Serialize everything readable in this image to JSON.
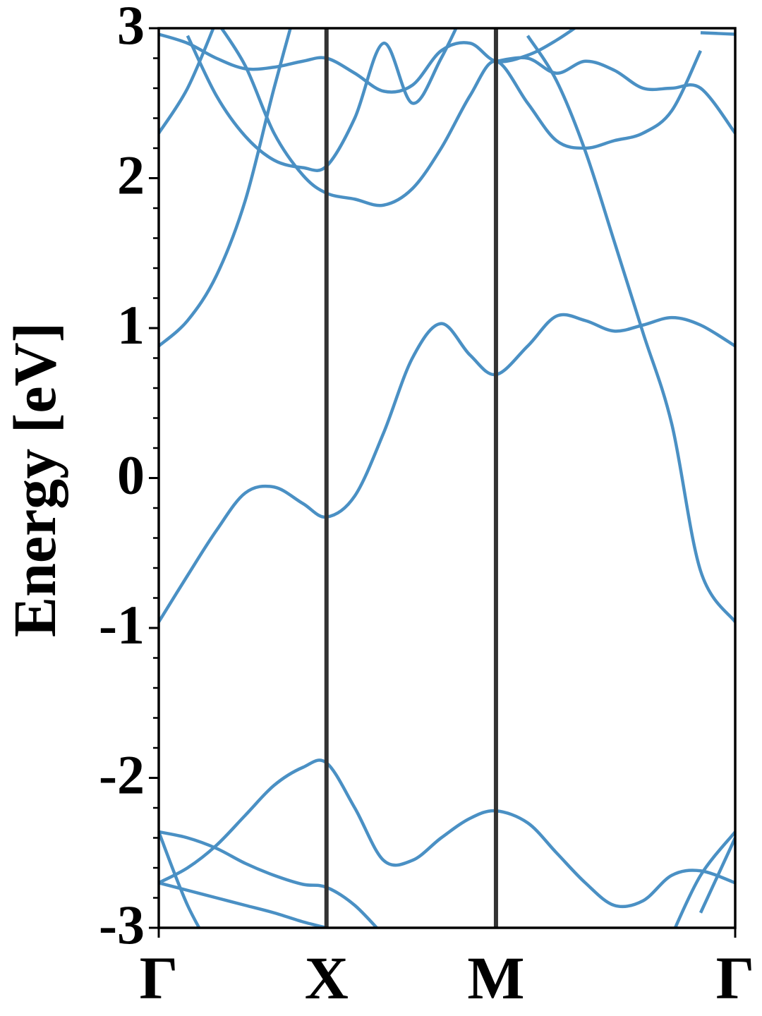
{
  "chart_data": {
    "type": "line",
    "ylabel": "Energy [eV]",
    "color": "#4a90c4",
    "xlim": [
      0,
      1
    ],
    "xticks": [
      {
        "value": 0,
        "label": "Γ"
      },
      {
        "value": 0.291,
        "label": "X"
      },
      {
        "value": 0.585,
        "label": "M"
      },
      {
        "value": 1,
        "label": "Γ"
      }
    ],
    "ylim": [
      -3,
      3
    ],
    "yticks": [
      -3,
      -2,
      -1,
      0,
      1,
      2,
      3
    ],
    "y_minor_ticks": [
      -2.8,
      -2.6,
      -2.4,
      -2.2,
      -1.8,
      -1.6,
      -1.4,
      -1.2,
      -0.8,
      -0.6,
      -0.4,
      -0.2,
      0.2,
      0.4,
      0.6,
      0.8,
      1.2,
      1.4,
      1.6,
      1.8,
      2.2,
      2.4,
      2.6,
      2.8
    ],
    "x": [
      0,
      0.05,
      0.1,
      0.15,
      0.2,
      0.25,
      0.291,
      0.34,
      0.39,
      0.44,
      0.49,
      0.54,
      0.585,
      0.64,
      0.69,
      0.74,
      0.79,
      0.84,
      0.89,
      0.94,
      1
    ],
    "series": [
      {
        "values": [
          -0.96,
          -0.65,
          -0.35,
          -0.1,
          -0.06,
          -0.17,
          -0.26,
          -0.12,
          0.3,
          0.8,
          1.03,
          0.82,
          0.69,
          0.88,
          1.08,
          1.05,
          0.98,
          1.02,
          1.07,
          1.02,
          0.88
        ]
      },
      {
        "values": [
          null,
          null,
          null,
          null,
          null,
          null,
          null,
          null,
          null,
          null,
          null,
          null,
          null,
          2.95,
          2.65,
          2.18,
          1.58,
          0.97,
          0.36,
          -0.62,
          -0.96
        ]
      },
      {
        "values": [
          0.88,
          1.05,
          1.35,
          1.85,
          2.6,
          3.3,
          null,
          null,
          null,
          null,
          null,
          null,
          null,
          null,
          null,
          null,
          null,
          null,
          null,
          null,
          null
        ]
      },
      {
        "values": [
          2.3,
          2.6,
          3.05,
          null,
          null,
          null,
          null,
          null,
          null,
          null,
          null,
          null,
          null,
          null,
          null,
          null,
          null,
          null,
          null,
          null,
          null
        ]
      },
      {
        "values": [
          2.96,
          2.9,
          2.8,
          2.73,
          2.74,
          2.78,
          2.8,
          2.7,
          2.58,
          2.62,
          2.85,
          2.9,
          2.78,
          2.82,
          2.92,
          3.05,
          null,
          null,
          null,
          null,
          null
        ]
      },
      {
        "values": [
          null,
          2.95,
          2.55,
          2.28,
          2.12,
          2.07,
          2.08,
          2.4,
          2.9,
          2.5,
          2.8,
          3.2,
          null,
          null,
          null,
          null,
          null,
          null,
          null,
          null,
          null
        ]
      },
      {
        "values": [
          null,
          null,
          3.05,
          2.75,
          2.3,
          2.02,
          1.9,
          1.86,
          1.82,
          1.93,
          2.2,
          2.55,
          2.78,
          2.5,
          2.25,
          2.2,
          2.25,
          2.3,
          2.45,
          2.85,
          null
        ]
      },
      {
        "values": [
          null,
          null,
          null,
          null,
          null,
          null,
          null,
          null,
          null,
          null,
          null,
          null,
          2.78,
          2.8,
          2.7,
          2.78,
          2.72,
          2.6,
          2.6,
          2.6,
          2.3
        ]
      },
      {
        "values": [
          null,
          null,
          null,
          null,
          null,
          null,
          null,
          null,
          null,
          null,
          null,
          null,
          null,
          null,
          null,
          null,
          null,
          null,
          null,
          2.97,
          2.96
        ]
      },
      {
        "values": [
          -2.7,
          -2.6,
          -2.45,
          -2.25,
          -2.05,
          -1.93,
          -1.9,
          -2.2,
          -2.55,
          -2.55,
          -2.4,
          -2.27,
          -2.22,
          -2.3,
          -2.5,
          -2.7,
          -2.85,
          -2.82,
          -2.65,
          -2.62,
          -2.7
        ]
      },
      {
        "values": [
          -2.36,
          -2.4,
          -2.47,
          -2.57,
          -2.65,
          -2.71,
          -2.73,
          -2.85,
          -3.05,
          null,
          null,
          null,
          null,
          null,
          null,
          null,
          null,
          null,
          null,
          null,
          null
        ]
      },
      {
        "values": [
          -2.7,
          -2.75,
          -2.8,
          -2.85,
          -2.9,
          -2.96,
          -3.0,
          null,
          null,
          null,
          null,
          null,
          null,
          null,
          null,
          null,
          null,
          null,
          null,
          null,
          null
        ]
      },
      {
        "values": [
          -2.36,
          -2.85,
          -3.2,
          null,
          null,
          null,
          null,
          null,
          null,
          null,
          null,
          null,
          null,
          null,
          null,
          null,
          null,
          null,
          null,
          null,
          null
        ]
      },
      {
        "values": [
          null,
          null,
          null,
          null,
          null,
          null,
          null,
          null,
          null,
          null,
          null,
          null,
          null,
          null,
          null,
          null,
          null,
          null,
          -3.05,
          -2.65,
          -2.36
        ]
      },
      {
        "values": [
          null,
          null,
          null,
          null,
          null,
          null,
          null,
          null,
          null,
          null,
          null,
          null,
          null,
          null,
          null,
          null,
          null,
          null,
          null,
          -2.9,
          -2.4
        ]
      }
    ]
  }
}
